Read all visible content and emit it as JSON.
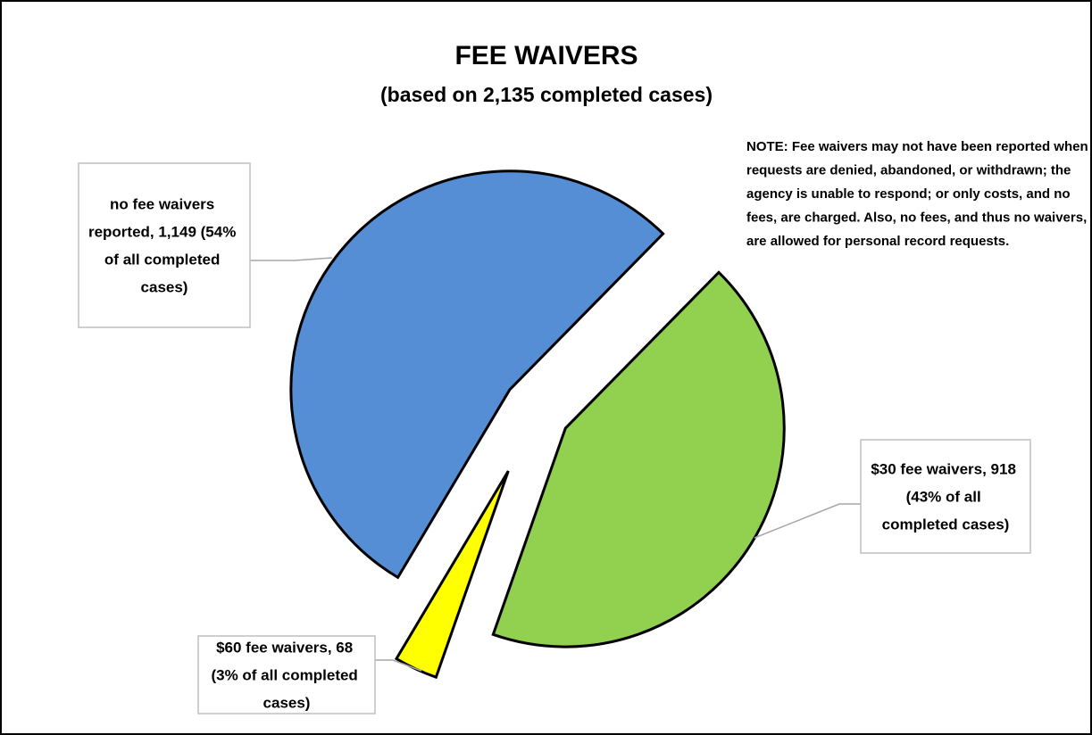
{
  "chart_data": {
    "type": "pie",
    "title": "FEE WAIVERS",
    "subtitle": "(based on 2,135 completed cases)",
    "note": "NOTE:  Fee waivers may not have been reported when requests are denied, abandoned, or withdrawn; the agency is unable to respond; or only costs, and no fees, are charged.  Also, no fees, and thus no waivers, are allowed for personal record requests.",
    "values": [
      918,
      68,
      1149
    ],
    "value_labels": [
      "$30 fee waivers, 918 (43% of all completed cases)",
      "$60 fee waivers, 68 (3% of all completed cases)",
      "no fee waivers reported, 1,149 (54% of all completed cases)"
    ],
    "colors": [
      "#92d050",
      "#ffff00",
      "#558ed5"
    ]
  }
}
